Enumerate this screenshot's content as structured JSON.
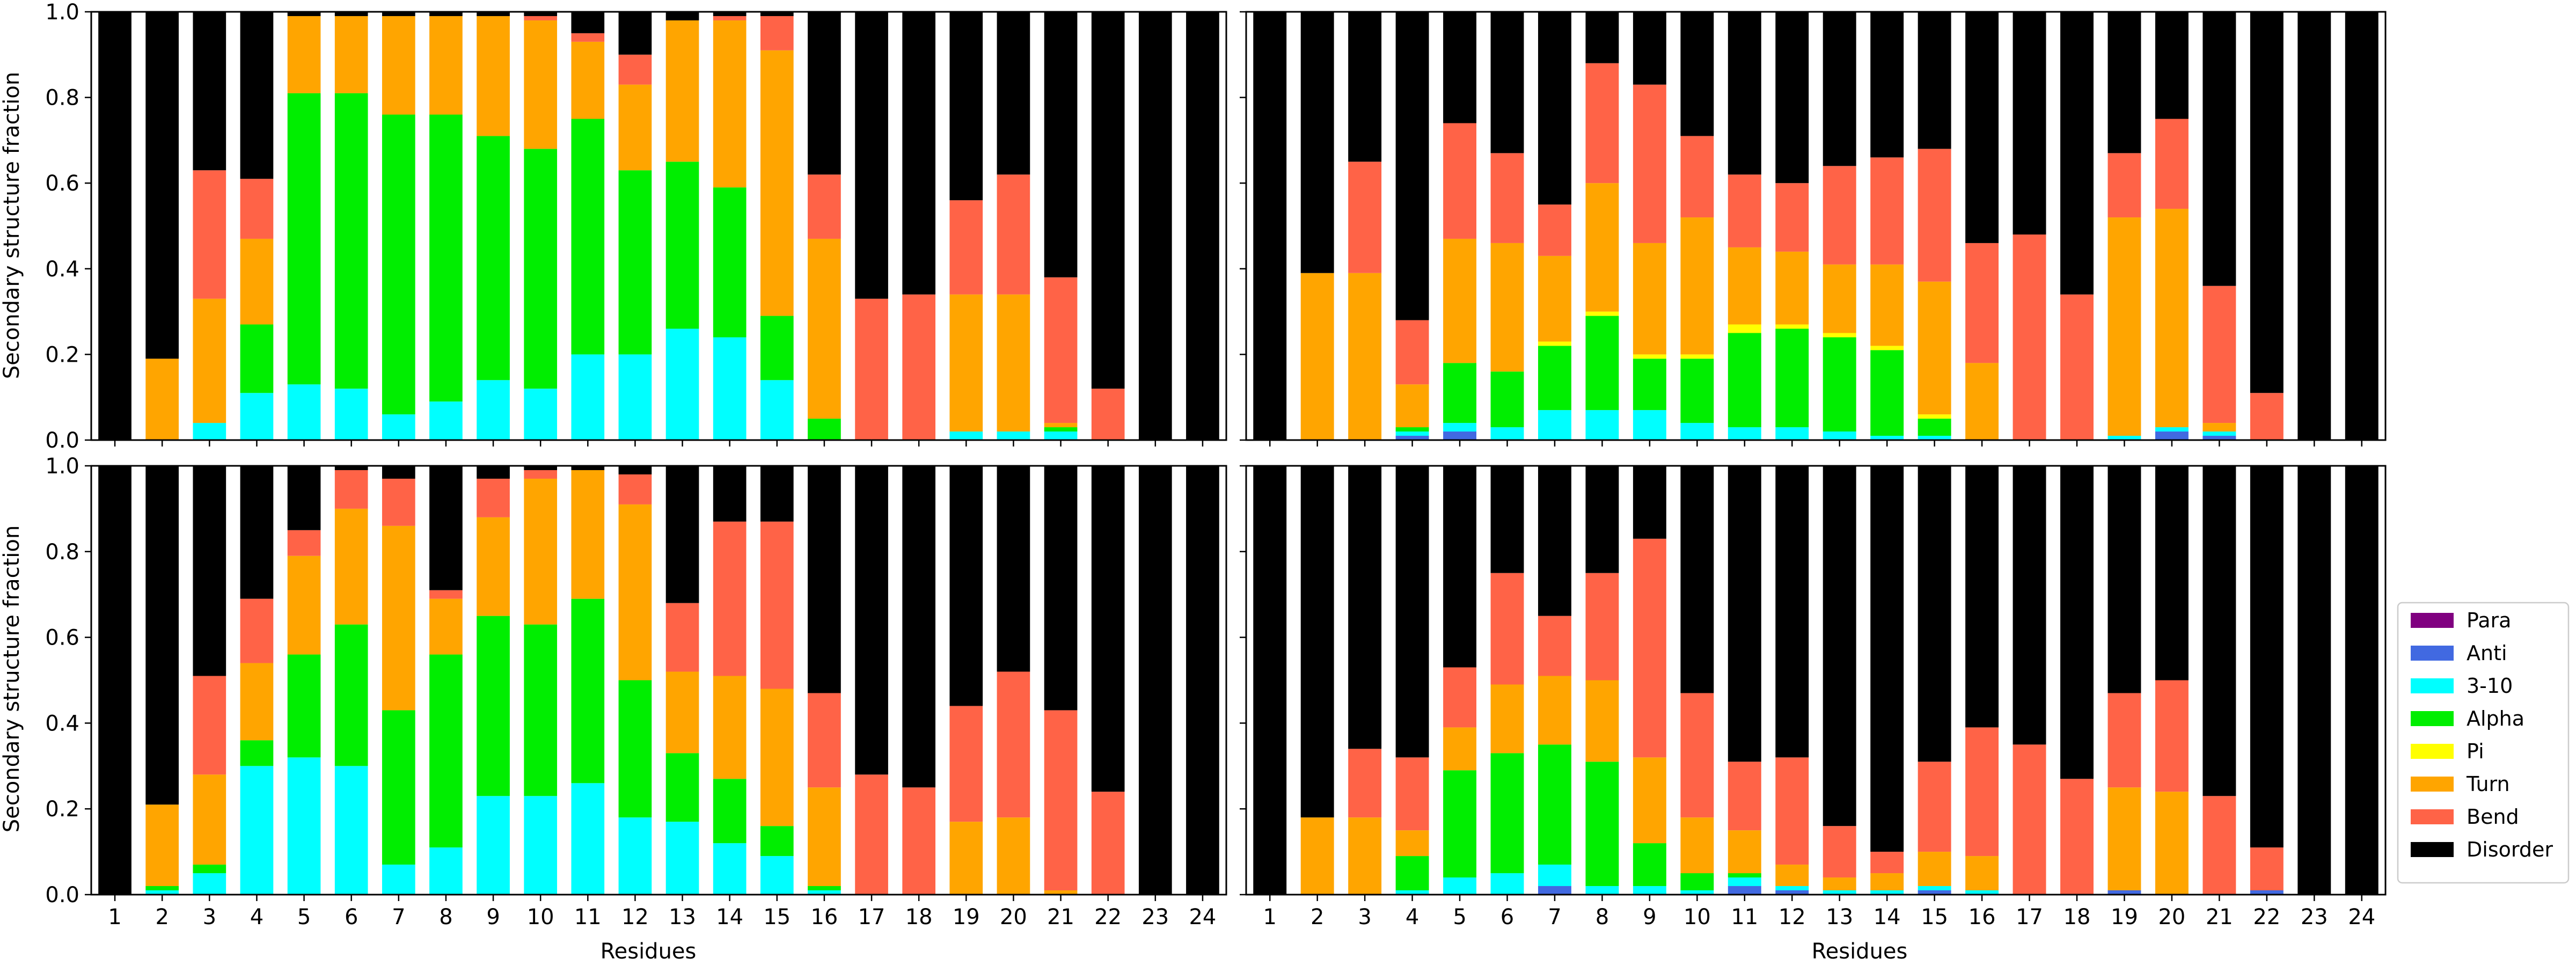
{
  "chart_data": {
    "type": "bar",
    "stacked": true,
    "xlabel": "Residues",
    "ylabel": "Secondary structure fraction",
    "ylim": [
      0,
      1.0
    ],
    "yticks": [
      "0.0",
      "0.2",
      "0.4",
      "0.6",
      "0.8",
      "1.0"
    ],
    "categories": [
      "1",
      "2",
      "3",
      "4",
      "5",
      "6",
      "7",
      "8",
      "9",
      "10",
      "11",
      "12",
      "13",
      "14",
      "15",
      "16",
      "17",
      "18",
      "19",
      "20",
      "21",
      "22",
      "23",
      "24"
    ],
    "grid": false,
    "legend": {
      "placement": "right-bottom",
      "entries": [
        {
          "name": "Para",
          "color": "#800080"
        },
        {
          "name": "Anti",
          "color": "#4169e1"
        },
        {
          "name": "3-10",
          "color": "#00ffff"
        },
        {
          "name": "Alpha",
          "color": "#00ee00"
        },
        {
          "name": "Pi",
          "color": "#ffff00"
        },
        {
          "name": "Turn",
          "color": "#ffa500"
        },
        {
          "name": "Bend",
          "color": "#ff6347"
        },
        {
          "name": "Disorder",
          "color": "#000000"
        }
      ]
    },
    "series_order": [
      "Para",
      "Anti",
      "3-10",
      "Alpha",
      "Pi",
      "Turn",
      "Bend",
      "Disorder"
    ],
    "panels": [
      {
        "name": "top-left",
        "row": 0,
        "col": 0,
        "show_ylabel": true,
        "show_xlabel": false,
        "stacks": [
          [
            0,
            0,
            0,
            0,
            0,
            0,
            0,
            1.0
          ],
          [
            0,
            0,
            0,
            0,
            0,
            0.19,
            0,
            0.81
          ],
          [
            0,
            0,
            0.04,
            0,
            0,
            0.29,
            0.3,
            0.37
          ],
          [
            0,
            0,
            0.11,
            0.16,
            0,
            0.2,
            0.14,
            0.39
          ],
          [
            0,
            0,
            0.13,
            0.68,
            0,
            0.18,
            0,
            0.01
          ],
          [
            0,
            0,
            0.12,
            0.69,
            0,
            0.18,
            0,
            0.01
          ],
          [
            0,
            0,
            0.06,
            0.7,
            0,
            0.23,
            0,
            0.01
          ],
          [
            0,
            0,
            0.09,
            0.67,
            0,
            0.23,
            0,
            0.01
          ],
          [
            0,
            0,
            0.14,
            0.57,
            0,
            0.28,
            0,
            0.01
          ],
          [
            0,
            0,
            0.12,
            0.56,
            0,
            0.3,
            0.01,
            0.01
          ],
          [
            0,
            0,
            0.2,
            0.55,
            0,
            0.18,
            0.02,
            0.05
          ],
          [
            0,
            0,
            0.2,
            0.43,
            0,
            0.2,
            0.07,
            0.1
          ],
          [
            0,
            0,
            0.26,
            0.39,
            0,
            0.33,
            0,
            0.02
          ],
          [
            0,
            0,
            0.24,
            0.35,
            0,
            0.39,
            0.01,
            0.01
          ],
          [
            0,
            0,
            0.14,
            0.15,
            0,
            0.62,
            0.08,
            0.01
          ],
          [
            0,
            0,
            0,
            0.05,
            0,
            0.42,
            0.15,
            0.38
          ],
          [
            0,
            0,
            0,
            0,
            0,
            0,
            0.33,
            0.67
          ],
          [
            0,
            0,
            0,
            0,
            0,
            0,
            0.34,
            0.66
          ],
          [
            0,
            0,
            0.02,
            0,
            0,
            0.32,
            0.22,
            0.44
          ],
          [
            0,
            0,
            0.02,
            0,
            0,
            0.32,
            0.28,
            0.38
          ],
          [
            0,
            0,
            0.02,
            0.01,
            0,
            0.01,
            0.34,
            0.62
          ],
          [
            0,
            0,
            0,
            0,
            0,
            0,
            0.12,
            0.88
          ],
          [
            0,
            0,
            0,
            0,
            0,
            0,
            0,
            1.0
          ],
          [
            0,
            0,
            0,
            0,
            0,
            0,
            0,
            1.0
          ]
        ]
      },
      {
        "name": "top-right",
        "row": 0,
        "col": 1,
        "show_ylabel": false,
        "show_xlabel": false,
        "stacks": [
          [
            0,
            0,
            0,
            0,
            0,
            0,
            0,
            1.0
          ],
          [
            0,
            0,
            0,
            0,
            0,
            0.39,
            0,
            0.61
          ],
          [
            0,
            0,
            0,
            0,
            0,
            0.39,
            0.26,
            0.35
          ],
          [
            0,
            0.01,
            0.01,
            0.01,
            0,
            0.1,
            0.15,
            0.72
          ],
          [
            0,
            0.02,
            0.02,
            0.14,
            0,
            0.29,
            0.27,
            0.26
          ],
          [
            0,
            0,
            0.03,
            0.13,
            0,
            0.3,
            0.21,
            0.33
          ],
          [
            0,
            0,
            0.07,
            0.15,
            0.01,
            0.2,
            0.12,
            0.45
          ],
          [
            0,
            0,
            0.07,
            0.22,
            0.01,
            0.3,
            0.28,
            0.12
          ],
          [
            0,
            0,
            0.07,
            0.12,
            0.01,
            0.26,
            0.37,
            0.17
          ],
          [
            0,
            0,
            0.04,
            0.15,
            0.01,
            0.32,
            0.19,
            0.29
          ],
          [
            0,
            0,
            0.03,
            0.22,
            0.02,
            0.18,
            0.17,
            0.38
          ],
          [
            0,
            0,
            0.03,
            0.23,
            0.01,
            0.17,
            0.16,
            0.4
          ],
          [
            0,
            0,
            0.02,
            0.22,
            0.01,
            0.16,
            0.23,
            0.36
          ],
          [
            0,
            0,
            0.01,
            0.2,
            0.01,
            0.19,
            0.25,
            0.34
          ],
          [
            0,
            0,
            0.01,
            0.04,
            0.01,
            0.31,
            0.31,
            0.32
          ],
          [
            0,
            0,
            0,
            0,
            0,
            0.18,
            0.28,
            0.54
          ],
          [
            0,
            0,
            0,
            0,
            0,
            0,
            0.48,
            0.52
          ],
          [
            0,
            0,
            0,
            0,
            0,
            0,
            0.34,
            0.66
          ],
          [
            0,
            0,
            0.01,
            0,
            0,
            0.51,
            0.15,
            0.33
          ],
          [
            0,
            0.02,
            0.01,
            0,
            0,
            0.51,
            0.21,
            0.25
          ],
          [
            0,
            0.01,
            0.01,
            0,
            0,
            0.02,
            0.32,
            0.64
          ],
          [
            0,
            0,
            0,
            0,
            0,
            0,
            0.11,
            0.89
          ],
          [
            0,
            0,
            0,
            0,
            0,
            0,
            0,
            1.0
          ],
          [
            0,
            0,
            0,
            0,
            0,
            0,
            0,
            1.0
          ]
        ]
      },
      {
        "name": "bottom-left",
        "row": 1,
        "col": 0,
        "show_ylabel": true,
        "show_xlabel": true,
        "stacks": [
          [
            0,
            0,
            0,
            0,
            0,
            0,
            0,
            1.0
          ],
          [
            0,
            0,
            0.01,
            0.01,
            0,
            0.19,
            0,
            0.79
          ],
          [
            0,
            0,
            0.05,
            0.02,
            0,
            0.21,
            0.23,
            0.49
          ],
          [
            0,
            0,
            0.3,
            0.06,
            0,
            0.18,
            0.15,
            0.31
          ],
          [
            0,
            0,
            0.32,
            0.24,
            0,
            0.23,
            0.06,
            0.15
          ],
          [
            0,
            0,
            0.3,
            0.33,
            0,
            0.27,
            0.09,
            0.01
          ],
          [
            0,
            0,
            0.07,
            0.36,
            0,
            0.43,
            0.11,
            0.03
          ],
          [
            0,
            0,
            0.11,
            0.45,
            0,
            0.13,
            0.02,
            0.29
          ],
          [
            0,
            0,
            0.23,
            0.42,
            0,
            0.23,
            0.09,
            0.03
          ],
          [
            0,
            0,
            0.23,
            0.4,
            0,
            0.34,
            0.02,
            0.01
          ],
          [
            0,
            0,
            0.26,
            0.43,
            0,
            0.3,
            0,
            0.01
          ],
          [
            0,
            0,
            0.18,
            0.32,
            0,
            0.41,
            0.07,
            0.02
          ],
          [
            0,
            0,
            0.17,
            0.16,
            0,
            0.19,
            0.16,
            0.32
          ],
          [
            0,
            0,
            0.12,
            0.15,
            0,
            0.24,
            0.36,
            0.13
          ],
          [
            0,
            0,
            0.09,
            0.07,
            0,
            0.32,
            0.39,
            0.13
          ],
          [
            0,
            0,
            0.01,
            0.01,
            0,
            0.23,
            0.22,
            0.53
          ],
          [
            0,
            0,
            0,
            0,
            0,
            0,
            0.28,
            0.72
          ],
          [
            0,
            0,
            0,
            0,
            0,
            0,
            0.25,
            0.75
          ],
          [
            0,
            0,
            0,
            0,
            0,
            0.17,
            0.27,
            0.56
          ],
          [
            0,
            0,
            0,
            0,
            0,
            0.18,
            0.34,
            0.48
          ],
          [
            0,
            0,
            0,
            0,
            0,
            0.01,
            0.42,
            0.57
          ],
          [
            0,
            0,
            0,
            0,
            0,
            0,
            0.24,
            0.76
          ],
          [
            0,
            0,
            0,
            0,
            0,
            0,
            0,
            1.0
          ],
          [
            0,
            0,
            0,
            0,
            0,
            0,
            0,
            1.0
          ]
        ]
      },
      {
        "name": "bottom-right",
        "row": 1,
        "col": 1,
        "show_ylabel": false,
        "show_xlabel": true,
        "stacks": [
          [
            0,
            0,
            0,
            0,
            0,
            0,
            0,
            1.0
          ],
          [
            0,
            0,
            0,
            0,
            0,
            0.18,
            0,
            0.82
          ],
          [
            0,
            0,
            0,
            0,
            0,
            0.18,
            0.16,
            0.66
          ],
          [
            0,
            0,
            0.01,
            0.08,
            0,
            0.06,
            0.17,
            0.68
          ],
          [
            0,
            0,
            0.04,
            0.25,
            0,
            0.1,
            0.14,
            0.47
          ],
          [
            0,
            0,
            0.05,
            0.28,
            0,
            0.16,
            0.26,
            0.25
          ],
          [
            0,
            0.02,
            0.05,
            0.28,
            0,
            0.16,
            0.14,
            0.35
          ],
          [
            0,
            0,
            0.02,
            0.29,
            0,
            0.19,
            0.25,
            0.25
          ],
          [
            0,
            0,
            0.02,
            0.1,
            0,
            0.2,
            0.51,
            0.17
          ],
          [
            0,
            0,
            0.01,
            0.04,
            0,
            0.13,
            0.29,
            0.53
          ],
          [
            0,
            0.02,
            0.02,
            0.01,
            0,
            0.1,
            0.16,
            0.69
          ],
          [
            0,
            0.01,
            0.01,
            0,
            0,
            0.05,
            0.25,
            0.68
          ],
          [
            0,
            0,
            0.01,
            0,
            0,
            0.03,
            0.12,
            0.84
          ],
          [
            0,
            0,
            0.01,
            0,
            0,
            0.04,
            0.05,
            0.9
          ],
          [
            0,
            0.01,
            0.01,
            0,
            0,
            0.08,
            0.21,
            0.69
          ],
          [
            0,
            0,
            0.01,
            0,
            0,
            0.08,
            0.3,
            0.61
          ],
          [
            0,
            0,
            0,
            0,
            0,
            0,
            0.35,
            0.65
          ],
          [
            0,
            0,
            0,
            0,
            0,
            0,
            0.27,
            0.73
          ],
          [
            0,
            0.01,
            0,
            0,
            0,
            0.24,
            0.22,
            0.53
          ],
          [
            0,
            0,
            0,
            0,
            0,
            0.24,
            0.26,
            0.5
          ],
          [
            0,
            0,
            0,
            0,
            0,
            0,
            0.23,
            0.77
          ],
          [
            0,
            0.01,
            0,
            0,
            0,
            0,
            0.1,
            0.89
          ],
          [
            0,
            0,
            0,
            0,
            0,
            0,
            0,
            1.0
          ],
          [
            0,
            0,
            0,
            0,
            0,
            0,
            0,
            1.0
          ]
        ]
      }
    ]
  }
}
